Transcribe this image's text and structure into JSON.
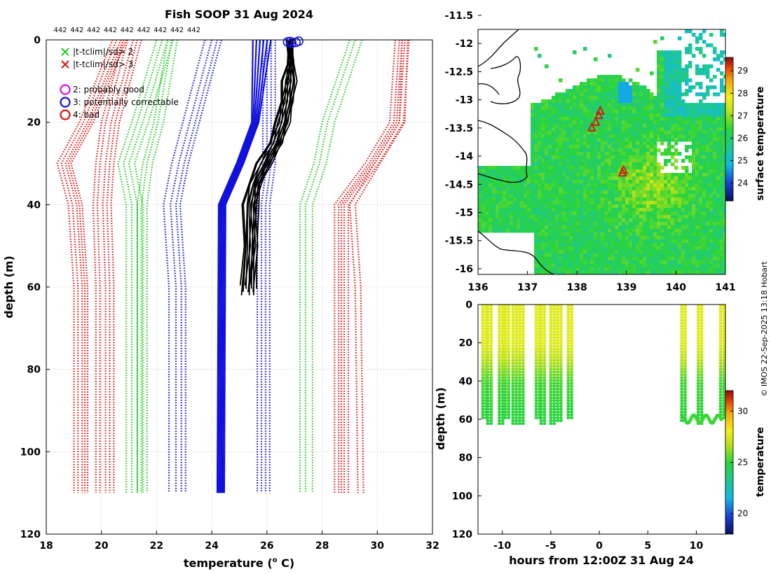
{
  "credit": "© IMOS 22-Sep-2025 13:18 Hobart",
  "colors": {
    "green": "#22cc22",
    "red": "#dd1111",
    "blue": "#1111dd",
    "black": "#000000",
    "magenta": "#dd11dd"
  },
  "chart_data": [
    {
      "id": "profiles",
      "type": "line",
      "title": "Fish SOOP 31 Aug 2024",
      "xlabel_prefix": "temperature (",
      "xlabel_sup": "o",
      "xlabel_suffix": " C)",
      "ylabel": "depth (m)",
      "xlim": [
        18,
        32
      ],
      "ylim": [
        0,
        120
      ],
      "y_inverted": true,
      "xticks": [
        18,
        20,
        22,
        24,
        26,
        28,
        30,
        32
      ],
      "yticks": [
        0,
        20,
        40,
        60,
        80,
        100,
        120
      ],
      "grid": true,
      "top_counts": [
        "442",
        "442",
        "442",
        "442",
        "442",
        "442",
        "442",
        "442",
        "442"
      ],
      "legend": [
        {
          "label": "|t-tclim|/sd> 2",
          "marker": "x",
          "color": "#22cc22"
        },
        {
          "label": "|t-tclim|/sd> 3",
          "marker": "x",
          "color": "#dd1111"
        },
        {
          "label": "2: probably good",
          "marker": "o",
          "color": "#dd11dd"
        },
        {
          "label": "3: potentially correctable",
          "marker": "o",
          "color": "#1111dd"
        },
        {
          "label": "4: bad",
          "marker": "o",
          "color": "#dd1111"
        }
      ],
      "climatology_depths": [
        0,
        20,
        30,
        40,
        60,
        110
      ],
      "climatology_series": [
        {
          "name": "clim-3sd-low",
          "color": "#dd1111",
          "offsets": [
            0,
            -0.15,
            -0.3,
            0.1,
            0.2
          ],
          "depth_profile": [
            20.7,
            19.5,
            18.7,
            19.1,
            19.3,
            19.3
          ]
        },
        {
          "name": "clim-3sd-low-2",
          "color": "#dd1111",
          "offsets": [
            0,
            0.15,
            0.35,
            0.5,
            0.65
          ],
          "depth_profile": [
            20.8,
            20.0,
            19.8,
            19.7,
            19.8,
            19.8
          ]
        },
        {
          "name": "clim-2sd-low",
          "color": "#22cc22",
          "offsets": [
            0,
            -0.2,
            0.2,
            0.4
          ],
          "depth_profile": [
            22.2,
            21.3,
            20.8,
            21.1,
            21.1,
            21.1
          ]
        },
        {
          "name": "clim-2sd-low-2",
          "color": "#22cc22",
          "offsets": [
            0,
            0.15,
            0.35
          ],
          "depth_profile": [
            22.4,
            21.9,
            21.5,
            21.3,
            21.3,
            21.3
          ]
        },
        {
          "name": "clim-sd-low",
          "color": "#1111dd",
          "offsets": [
            -0.25,
            0,
            0.2,
            0.35
          ],
          "depth_profile": [
            24.0,
            23.2,
            22.8,
            22.5,
            22.7,
            22.7
          ]
        },
        {
          "name": "clim-sd-high",
          "color": "#1111dd",
          "offsets": [
            -0.15,
            0,
            0.15,
            0.3
          ],
          "depth_profile": [
            26.0,
            26.0,
            26.0,
            25.8,
            25.8,
            25.8
          ]
        },
        {
          "name": "clim-2sd-high",
          "color": "#22cc22",
          "offsets": [
            0,
            0.2,
            0.45
          ],
          "depth_profile": [
            29.0,
            28.0,
            27.7,
            27.2,
            27.2,
            27.2
          ]
        },
        {
          "name": "clim-3sd-high",
          "color": "#dd1111",
          "offsets": [
            -0.15,
            0,
            0.1,
            0.2,
            0.35
          ],
          "depth_profile": [
            30.8,
            30.6,
            29.7,
            28.6,
            28.6,
            28.6
          ]
        },
        {
          "name": "clim-3sd-high-2",
          "color": "#dd1111",
          "offsets": [
            0,
            0.2
          ],
          "depth_profile": [
            30.9,
            30.8,
            29.9,
            29.0,
            29.2,
            29.3
          ]
        }
      ],
      "mean_profile_depths": [
        0,
        20,
        30,
        40,
        110
      ],
      "mean_profiles": [
        25.75,
        25.55,
        25.0,
        24.35,
        24.3
      ],
      "mean_profile_offsets": [
        -0.1,
        -0.05,
        0,
        0.05,
        0.1,
        0.15
      ],
      "obs_depths": [
        0,
        5,
        10,
        15,
        20,
        25,
        30,
        35,
        40,
        50,
        62
      ],
      "obs_profile_base": [
        26.8,
        26.85,
        26.8,
        26.7,
        26.55,
        26.3,
        25.9,
        25.55,
        25.4,
        25.4,
        25.3
      ],
      "obs_offsets": [
        -0.25,
        -0.18,
        -0.12,
        -0.06,
        0,
        0.05,
        0.1,
        0.15,
        0.2,
        0.25,
        0.3,
        -0.3
      ],
      "surface_flags": [
        {
          "temp": 26.75,
          "depth": 0.5
        },
        {
          "temp": 26.9,
          "depth": 0.8
        },
        {
          "temp": 27.05,
          "depth": 0.6
        },
        {
          "temp": 27.15,
          "depth": 0.3
        },
        {
          "temp": 26.85,
          "depth": 0.4
        }
      ]
    },
    {
      "id": "map",
      "type": "heatmap",
      "xlim": [
        136,
        141
      ],
      "ylim": [
        -16.1,
        -11.75
      ],
      "xticks": [
        "136",
        "137",
        "138",
        "139",
        "140",
        "141"
      ],
      "yticks": [
        "-11.5",
        "-12",
        "-12.5",
        "-13",
        "-13.5",
        "-14",
        "-14.5",
        "-15",
        "-15.5",
        "-16"
      ],
      "ytick_values": [
        -11.5,
        -12,
        -12.5,
        -13,
        -13.5,
        -14,
        -14.5,
        -15,
        -15.5,
        -16
      ],
      "colorbar_label": "surface temperature",
      "colorbar_range": [
        23.2,
        29.6
      ],
      "colorbar_ticks": [
        "24",
        "25",
        "26",
        "27",
        "28",
        "29"
      ],
      "colorbar_tick_values": [
        24,
        25,
        26,
        27,
        28,
        29
      ],
      "observation_points": [
        {
          "lon": 138.3,
          "lat": -13.5
        },
        {
          "lon": 138.38,
          "lat": -13.4
        },
        {
          "lon": 138.44,
          "lat": -13.28
        },
        {
          "lon": 138.47,
          "lat": -13.2
        },
        {
          "lon": 138.92,
          "lat": -14.3
        },
        {
          "lon": 138.94,
          "lat": -14.25
        }
      ]
    },
    {
      "id": "timeseries",
      "type": "scatter",
      "xlabel": "hours from 12:00Z 31 Aug 24",
      "ylabel": "depth (m)",
      "xlim": [
        -12.5,
        13
      ],
      "ylim": [
        0,
        120
      ],
      "y_inverted": true,
      "xticks": [
        "-10",
        "-5",
        "0",
        "5",
        "10"
      ],
      "xtick_values": [
        -10,
        -5,
        0,
        5,
        10
      ],
      "yticks": [
        "0",
        "20",
        "40",
        "60",
        "80",
        "100",
        "120"
      ],
      "ytick_values": [
        0,
        20,
        40,
        60,
        80,
        100,
        120
      ],
      "colorbar_label": "temperature",
      "colorbar_range": [
        18,
        32
      ],
      "colorbar_ticks": [
        "20",
        "25",
        "30"
      ],
      "colorbar_tick_values": [
        20,
        25,
        30
      ],
      "profile_hours": [
        -12.0,
        -11.5,
        -10.3,
        -9.7,
        -8.9,
        -8.2,
        -6.5,
        -6.0,
        -5.0,
        -4.3,
        -3.2,
        8.5,
        10.2,
        12.5
      ],
      "profile_max_depth": [
        60,
        62,
        62,
        60,
        62,
        62,
        60,
        62,
        62,
        61,
        60,
        61,
        62,
        60
      ]
    }
  ]
}
